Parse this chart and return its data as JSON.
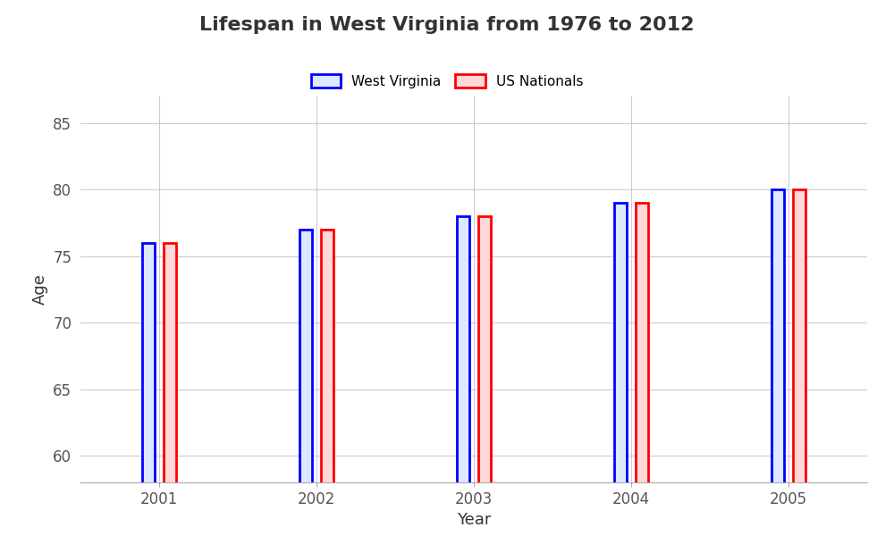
{
  "title": "Lifespan in West Virginia from 1976 to 2012",
  "xlabel": "Year",
  "ylabel": "Age",
  "years": [
    2001,
    2002,
    2003,
    2004,
    2005
  ],
  "west_virginia": [
    76.0,
    77.0,
    78.0,
    79.0,
    80.0
  ],
  "us_nationals": [
    76.0,
    77.0,
    78.0,
    79.0,
    80.0
  ],
  "ylim": [
    58,
    87
  ],
  "yticks": [
    60,
    65,
    70,
    75,
    80,
    85
  ],
  "bar_width": 0.08,
  "bar_gap": 0.06,
  "wv_face_color": "#dce9ff",
  "wv_edge_color": "#0000ff",
  "us_face_color": "#ffd9d9",
  "us_edge_color": "#ff0000",
  "background_color": "#ffffff",
  "grid_color": "#cccccc",
  "title_fontsize": 16,
  "label_fontsize": 13,
  "tick_fontsize": 12,
  "legend_fontsize": 11,
  "bar_linewidth": 2.0
}
